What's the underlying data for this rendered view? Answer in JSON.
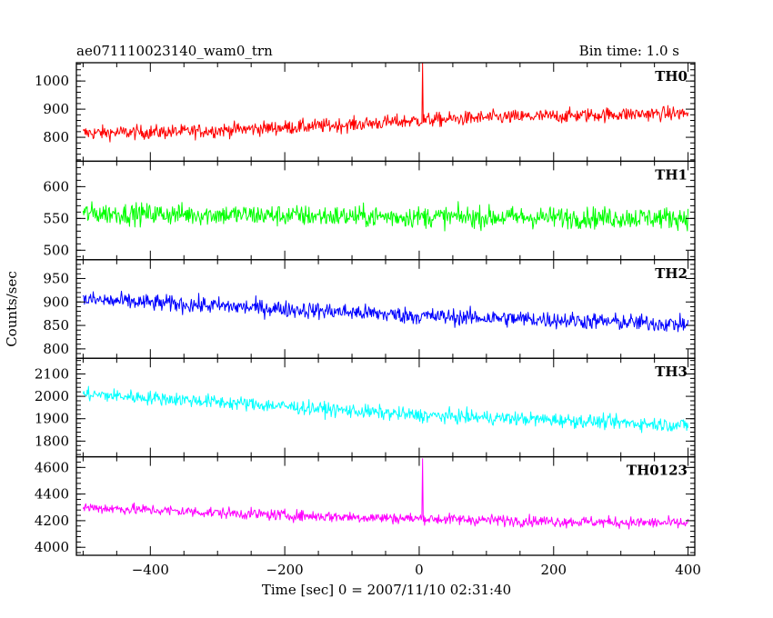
{
  "header": {
    "title": "ae071110023140_wam0_trn",
    "bin_time": "Bin time: 1.0 s"
  },
  "chart_data": {
    "type": "line",
    "xlabel": "Time [sec] 0 = 2007/11/10 02:31:40",
    "ylabel": "Counts/sec",
    "xlim": [
      -510,
      410
    ],
    "x_ticks": [
      -400,
      -200,
      0,
      200,
      400
    ],
    "panels": [
      {
        "name": "TH0",
        "color": "#ff0000",
        "ylim": [
          715,
          1065
        ],
        "y_ticks": [
          800,
          900,
          1000
        ],
        "trend": [
          [
            -500,
            815
          ],
          [
            -350,
            820
          ],
          [
            -200,
            835
          ],
          [
            -100,
            845
          ],
          [
            0,
            860
          ],
          [
            100,
            870
          ],
          [
            200,
            875
          ],
          [
            300,
            882
          ],
          [
            400,
            885
          ]
        ],
        "noise_amplitude": 45,
        "spikes": [
          {
            "x": 5,
            "y": 1065
          }
        ],
        "values": [
          815,
          820,
          835,
          845,
          860,
          870,
          875,
          882,
          885
        ]
      },
      {
        "name": "TH1",
        "color": "#00ff00",
        "ylim": [
          485,
          640
        ],
        "y_ticks": [
          500,
          550,
          600
        ],
        "trend": [
          [
            -500,
            558
          ],
          [
            -300,
            556
          ],
          [
            -100,
            553
          ],
          [
            100,
            552
          ],
          [
            300,
            551
          ],
          [
            400,
            551
          ]
        ],
        "noise_amplitude": 30,
        "spikes": [],
        "values": [
          558,
          556,
          553,
          552,
          551,
          551
        ]
      },
      {
        "name": "TH2",
        "color": "#0000ff",
        "ylim": [
          780,
          990
        ],
        "y_ticks": [
          800,
          850,
          900,
          950
        ],
        "trend": [
          [
            -500,
            905
          ],
          [
            -350,
            895
          ],
          [
            -200,
            885
          ],
          [
            -100,
            878
          ],
          [
            0,
            870
          ],
          [
            200,
            862
          ],
          [
            400,
            852
          ]
        ],
        "noise_amplitude": 32,
        "spikes": [],
        "values": [
          905,
          895,
          885,
          878,
          870,
          862,
          852
        ]
      },
      {
        "name": "TH3",
        "color": "#00ffff",
        "ylim": [
          1730,
          2170
        ],
        "y_ticks": [
          1800,
          1900,
          2000,
          2100
        ],
        "trend": [
          [
            -500,
            2010
          ],
          [
            -350,
            1985
          ],
          [
            -200,
            1955
          ],
          [
            -100,
            1935
          ],
          [
            0,
            1915
          ],
          [
            200,
            1895
          ],
          [
            400,
            1870
          ]
        ],
        "noise_amplitude": 55,
        "spikes": [],
        "values": [
          2010,
          1985,
          1955,
          1935,
          1915,
          1895,
          1870
        ]
      },
      {
        "name": "TH0123",
        "color": "#ff00ff",
        "ylim": [
          3940,
          4680
        ],
        "y_ticks": [
          4000,
          4200,
          4400,
          4600
        ],
        "trend": [
          [
            -500,
            4300
          ],
          [
            -350,
            4270
          ],
          [
            -200,
            4240
          ],
          [
            0,
            4215
          ],
          [
            200,
            4195
          ],
          [
            400,
            4180
          ]
        ],
        "noise_amplitude": 75,
        "spikes": [
          {
            "x": 5,
            "y": 4665
          }
        ],
        "values": [
          4300,
          4270,
          4240,
          4215,
          4195,
          4180
        ]
      }
    ]
  }
}
